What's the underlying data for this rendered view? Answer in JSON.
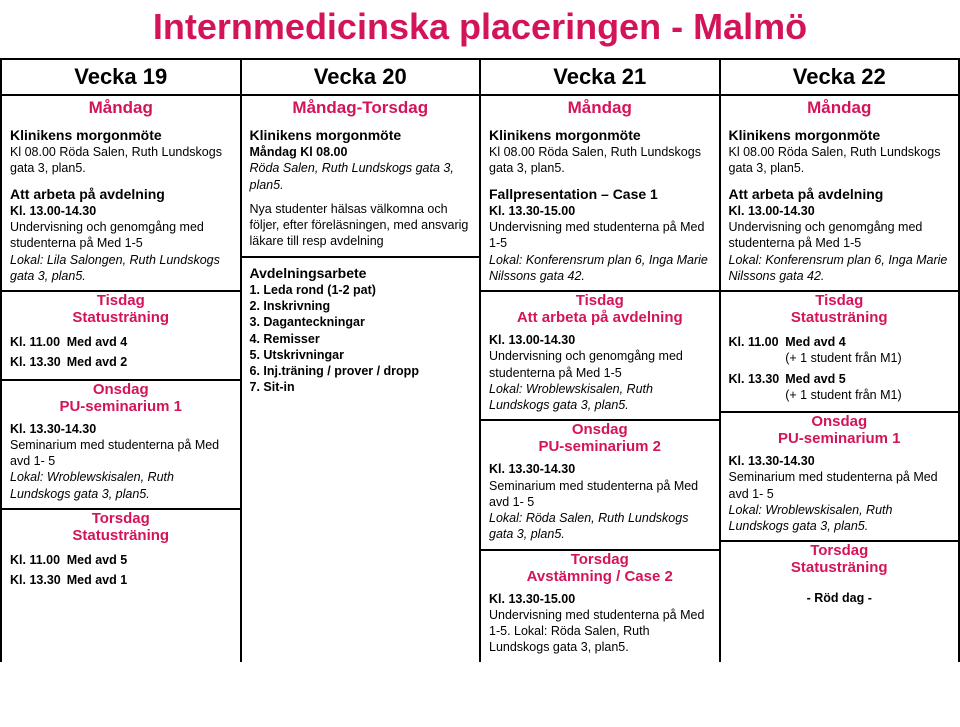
{
  "title": "Internmedicinska placeringen - Malmö",
  "weeks": [
    "Vecka 19",
    "Vecka 20",
    "Vecka 21",
    "Vecka 22"
  ],
  "col1": {
    "day": "Måndag",
    "morgon_h": "Klinikens morgonmöte",
    "morgon_t": "Kl 08.00 Röda Salen, Ruth Lundskogs gata 3, plan5.",
    "arb_h": "Att arbeta på avdelning",
    "arb_t1_b": "Kl. 13.00-14.30",
    "arb_t2": "Undervisning och genomgång med studenterna på Med 1-5",
    "arb_t3": "Lokal: Lila Salongen, Ruth Lundskogs gata 3, plan5.",
    "tis": "Tisdag",
    "tis_sub": "Statusträning",
    "r1_a": "Kl. 11.00",
    "r1_b": "Med avd 4",
    "r2_a": "Kl. 13.30",
    "r2_b": "Med avd 2",
    "ons": "Onsdag",
    "ons_sub": "PU-seminarium 1",
    "sem_t1_b": "Kl. 13.30-14.30",
    "sem_t2": "Seminarium med studenterna på Med avd 1- 5",
    "sem_t3": "Lokal: Wroblewskisalen, Ruth Lundskogs gata 3, plan5.",
    "tor": "Torsdag",
    "tor_sub": "Statusträning",
    "r3_a": "Kl. 11.00",
    "r3_b": "Med avd 5",
    "r4_a": "Kl. 13.30",
    "r4_b": "Med avd 1"
  },
  "col2": {
    "day": "Måndag-Torsdag",
    "morgon_h": "Klinikens morgonmöte",
    "morgon_t1_b": "Måndag Kl 08.00",
    "morgon_t2": "Röda Salen, Ruth Lundskogs gata 3, plan5.",
    "nya": "Nya studenter hälsas välkomna och följer, efter föreläsningen, med ansvarig läkare till resp avdelning",
    "avd_h": "Avdelningsarbete",
    "l1": "1. Leda rond (1-2 pat)",
    "l2": "2. Inskrivning",
    "l3": "3. Daganteckningar",
    "l4": "4. Remisser",
    "l5": "5. Utskrivningar",
    "l6": "6. Inj.träning / prover / dropp",
    "l7": "7. Sit-in"
  },
  "col3": {
    "day": "Måndag",
    "morgon_h": "Klinikens morgonmöte",
    "morgon_t": "Kl 08.00 Röda Salen, Ruth Lundskogs gata 3, plan5.",
    "fall_h": "Fallpresentation – Case 1",
    "fall_t1_b": "Kl. 13.30-15.00",
    "fall_t2": "Undervisning med studenterna på Med 1-5",
    "fall_t3": "Lokal: Konferensrum plan 6, Inga Marie Nilssons gata 42.",
    "tis": "Tisdag",
    "tis_sub": "Att arbeta på avdelning",
    "und_t1_b": "Kl. 13.00-14.30",
    "und_t2": "Undervisning och genomgång med studenterna på Med 1-5",
    "und_t3": "Lokal: Wroblewskisalen, Ruth Lundskogs gata 3, plan5.",
    "ons": "Onsdag",
    "ons_sub": "PU-seminarium 2",
    "sem_t1_b": "Kl. 13.30-14.30",
    "sem_t2": "Seminarium med studenterna på Med avd 1- 5",
    "sem_t3": "Lokal: Röda Salen, Ruth Lundskogs gata 3, plan5.",
    "tor": "Torsdag",
    "tor_sub": "Avstämning / Case 2",
    "tor_t1_b": "Kl. 13.30-15.00",
    "tor_t2": "Undervisning med studenterna på Med 1-5. Lokal: Röda Salen, Ruth Lundskogs gata 3, plan5."
  },
  "col4": {
    "day": "Måndag",
    "morgon_h": "Klinikens morgonmöte",
    "morgon_t": "Kl 08.00 Röda Salen, Ruth Lundskogs gata 3, plan5.",
    "arb_h": "Att arbeta på avdelning",
    "arb_t1_b": "Kl. 13.00-14.30",
    "arb_t2": "Undervisning och genomgång med studenterna på Med 1-5",
    "arb_t3": "Lokal: Konferensrum plan 6, Inga Marie Nilssons gata 42.",
    "tis": "Tisdag",
    "tis_sub": "Statusträning",
    "r1_a": "Kl. 11.00",
    "r1_b": "Med avd 4",
    "r1_c": "(+ 1 student från M1)",
    "r2_a": "Kl. 13.30",
    "r2_b": "Med avd 5",
    "r2_c": "(+ 1 student från M1)",
    "ons": "Onsdag",
    "ons_sub": "PU-seminarium 1",
    "sem_t1_b": "Kl. 13.30-14.30",
    "sem_t2": "Seminarium med studenterna på Med avd 1- 5",
    "sem_t3": "Lokal: Wroblewskisalen, Ruth Lundskogs gata 3, plan5.",
    "tor": "Torsdag",
    "tor_sub": "Statusträning",
    "red_day": "- Röd dag -"
  }
}
